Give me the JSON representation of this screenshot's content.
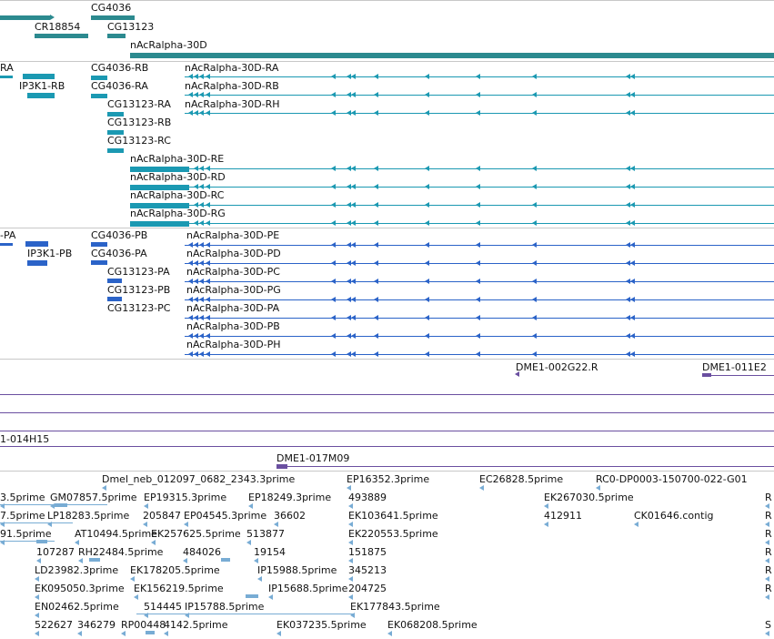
{
  "colors": {
    "gene_teal": "#2c8a8f",
    "transcript_teal": "#1b99b2",
    "protein_blue": "#2b63c8",
    "clone_purple": "#6a4fa0",
    "est_lightblue": "#78acd4",
    "divider": "#c8c8c8"
  },
  "track_genes": {
    "labels": [
      "CG4036",
      "CR18854",
      "CG13123",
      "nAcRalpha-30D"
    ]
  },
  "track_transcripts": {
    "labels": [
      "RA",
      "IP3K1-RB",
      "CG4036-RB",
      "CG4036-RA",
      "CG13123-RA",
      "CG13123-RB",
      "CG13123-RC",
      "nAcRalpha-30D-RA",
      "nAcRalpha-30D-RB",
      "nAcRalpha-30D-RH",
      "nAcRalpha-30D-RE",
      "nAcRalpha-30D-RD",
      "nAcRalpha-30D-RC",
      "nAcRalpha-30D-RG"
    ]
  },
  "track_proteins": {
    "labels": [
      "-PA",
      "IP3K1-PB",
      "CG4036-PB",
      "CG4036-PA",
      "CG13123-PA",
      "CG13123-PB",
      "CG13123-PC",
      "nAcRalpha-30D-PE",
      "nAcRalpha-30D-PD",
      "nAcRalpha-30D-PC",
      "nAcRalpha-30D-PG",
      "nAcRalpha-30D-PA",
      "nAcRalpha-30D-PB",
      "nAcRalpha-30D-PH"
    ]
  },
  "track_clones": {
    "labels": [
      "DME1-002G22.R",
      "DME1-011E2",
      "1-014H15",
      "DME1-017M09"
    ]
  },
  "track_est": {
    "labels": [
      "Dmel_neb_012097_0682_2343.3prime",
      "EP16352.3prime",
      "EC26828.5prime",
      "RC0-DP0003-150700-022-G01",
      "3.5prime",
      "GM07857.5prime",
      "EP19315.3prime",
      "EP18249.3prime",
      "493889",
      "EK267030.5prime",
      "7.5prime",
      "LP18283.5prime",
      "205847",
      "EP04545.3prime",
      "36602",
      "EK103641.5prime",
      "412911",
      "CK01646.contig",
      "91.5prime",
      "AT10494.5prime",
      "EK257625.5prime",
      "513877",
      "EK220553.5prime",
      "107287",
      "RH22484.5prime",
      "484026",
      "19154",
      "151875",
      "LD23982.3prime",
      "EK178205.5prime",
      "IP15988.5prime",
      "345213",
      "EK095050.3prime",
      "EK156219.5prime",
      "IP15688.5prime",
      "204725",
      "EN02462.5prime",
      "514445",
      "IP15788.5prime",
      "EK177843.5prime",
      "522627",
      "346279",
      "RP00448",
      "4142.5prime",
      "EK037235.5prime",
      "EK068208.5prime",
      "R",
      "R",
      "R",
      "R",
      "R",
      "R",
      "S"
    ]
  }
}
